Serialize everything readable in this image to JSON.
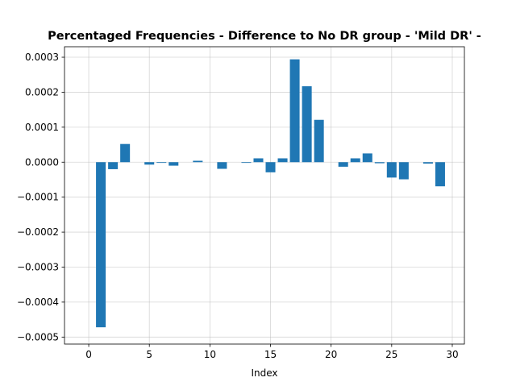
{
  "chart_data": {
    "type": "bar",
    "title": "Percentaged Frequencies - Difference to No DR group - 'Mild DR' -",
    "xlabel": "Index",
    "ylabel": "",
    "xlim": [
      -2,
      31
    ],
    "ylim": [
      -0.00052,
      0.00033
    ],
    "xticks": [
      0,
      5,
      10,
      15,
      20,
      25,
      30
    ],
    "yticks": [
      -0.0005,
      -0.0004,
      -0.0003,
      -0.0002,
      -0.0001,
      0.0,
      0.0001,
      0.0002,
      0.0003
    ],
    "ytick_labels": [
      "−0.0005",
      "−0.0004",
      "−0.0003",
      "−0.0002",
      "−0.0001",
      "0.0000",
      "0.0001",
      "0.0002",
      "0.0003"
    ],
    "grid": true,
    "bar_color": "#1f77b4",
    "x": [
      1,
      2,
      3,
      5,
      6,
      7,
      9,
      11,
      13,
      14,
      15,
      16,
      17,
      18,
      19,
      21,
      22,
      23,
      24,
      25,
      26,
      28,
      29
    ],
    "values": [
      -0.000472,
      -2e-05,
      5.2e-05,
      -7e-06,
      -2e-06,
      -1e-05,
      4e-06,
      -1.9e-05,
      -2e-06,
      1.1e-05,
      -2.9e-05,
      1.1e-05,
      0.000294,
      0.000217,
      0.000121,
      -1.3e-05,
      1.1e-05,
      2.5e-05,
      -3e-06,
      -4.4e-05,
      -4.9e-05,
      -4e-06,
      -6.9e-05
    ]
  }
}
